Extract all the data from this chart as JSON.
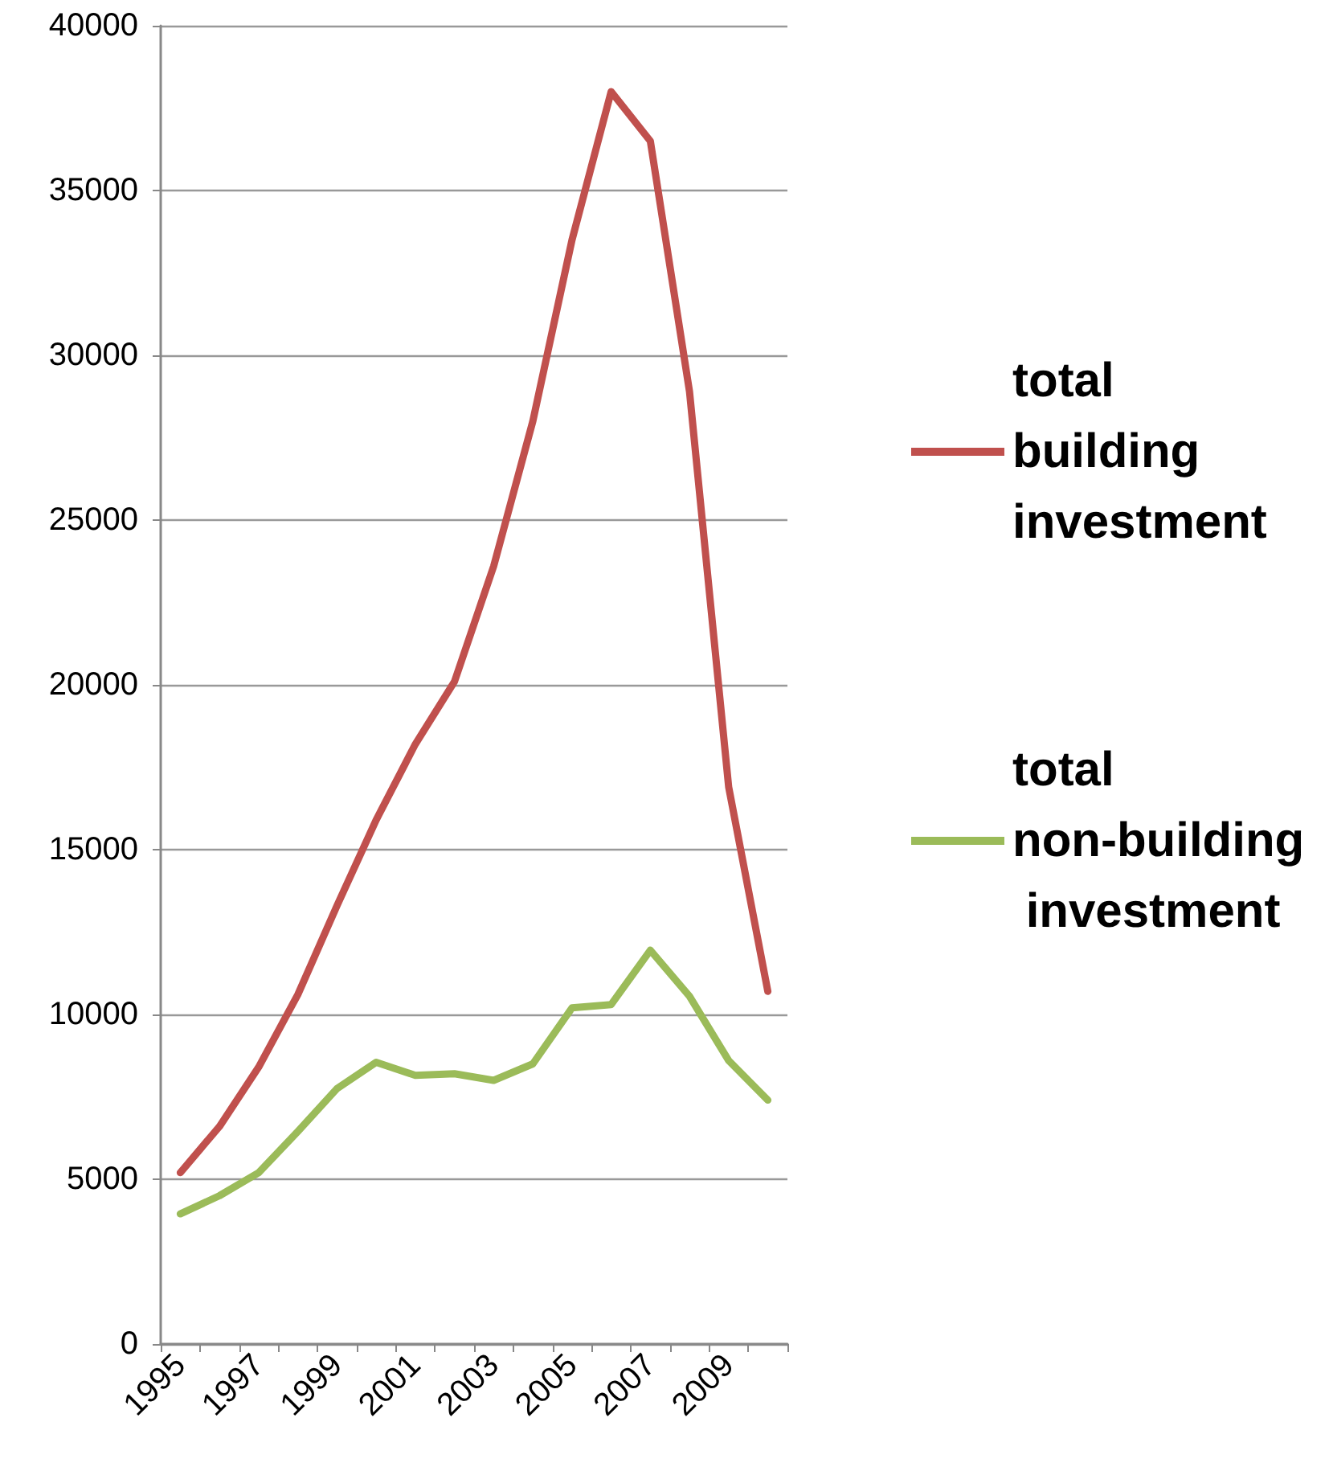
{
  "chart_data": {
    "type": "line",
    "categories": [
      "1995",
      null,
      "1997",
      null,
      "1999",
      null,
      "2001",
      null,
      "2003",
      null,
      "2005",
      null,
      "2007",
      null,
      "2009",
      null
    ],
    "series": [
      {
        "name": "total building investment",
        "color": "#c0504d",
        "values": [
          5200,
          6600,
          8400,
          10600,
          13300,
          15900,
          18200,
          20100,
          23600,
          28000,
          33500,
          38000,
          36500,
          28900,
          16900,
          10700
        ]
      },
      {
        "name": "total non-building investment",
        "color": "#9bbb59",
        "values": [
          3950,
          4500,
          5200,
          6450,
          7750,
          8550,
          8150,
          8200,
          8000,
          8500,
          10200,
          10300,
          11950,
          10550,
          8600,
          7400
        ]
      }
    ],
    "ylim": [
      0,
      40000
    ],
    "yticks": [
      0,
      5000,
      10000,
      15000,
      20000,
      25000,
      30000,
      35000,
      40000
    ],
    "grid": "y",
    "legend": "right",
    "marker": "none",
    "line_style": "solid"
  }
}
